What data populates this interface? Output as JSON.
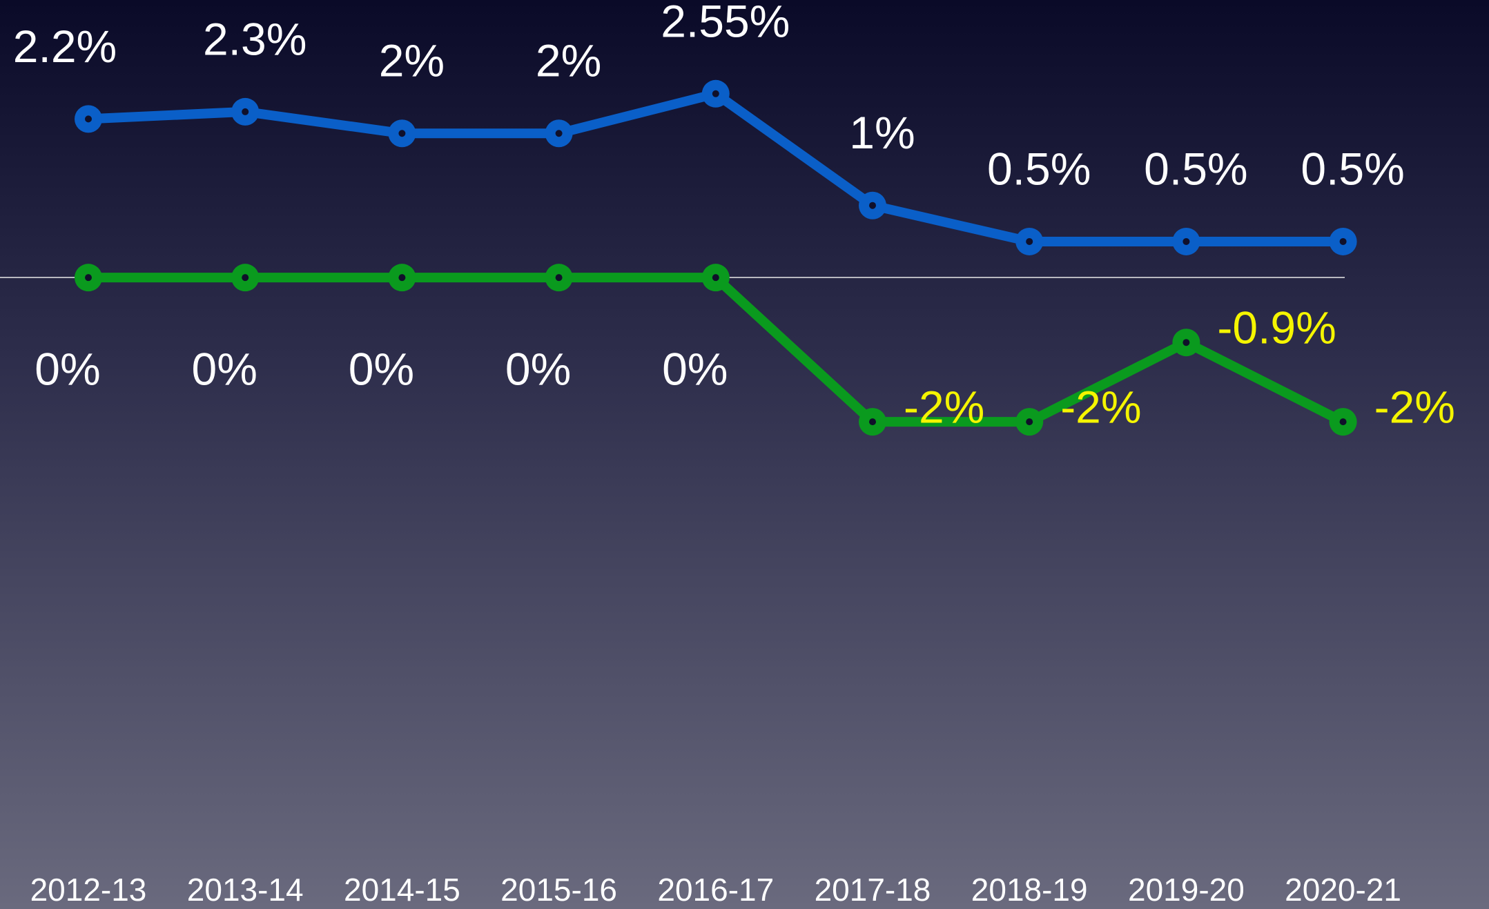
{
  "chart_data": {
    "type": "line",
    "categories": [
      "2012-13",
      "2013-14",
      "2014-15",
      "2015-16",
      "2016-17",
      "2017-18",
      "2018-19",
      "2019-20",
      "2020-21"
    ],
    "series": [
      {
        "color": "#0a5fc8",
        "values": [
          2.2,
          2.3,
          2,
          2,
          2.55,
          1,
          0.5,
          0.5,
          0.5
        ],
        "value_labels": [
          "2.2%",
          "2.3%",
          "2%",
          "2%",
          "2.55%",
          "1%",
          "0.5%",
          "0.5%",
          "0.5%"
        ]
      },
      {
        "color": "#0a9a1e",
        "values": [
          0,
          0,
          0,
          0,
          0,
          -2,
          -2,
          -0.9,
          -2
        ],
        "value_labels": [
          "0%",
          "0%",
          "0%",
          "0%",
          "0%",
          "-2%",
          "-2%",
          "-0.9%",
          "-2%"
        ]
      }
    ],
    "ylim": [
      -8.7,
      3.85
    ]
  }
}
